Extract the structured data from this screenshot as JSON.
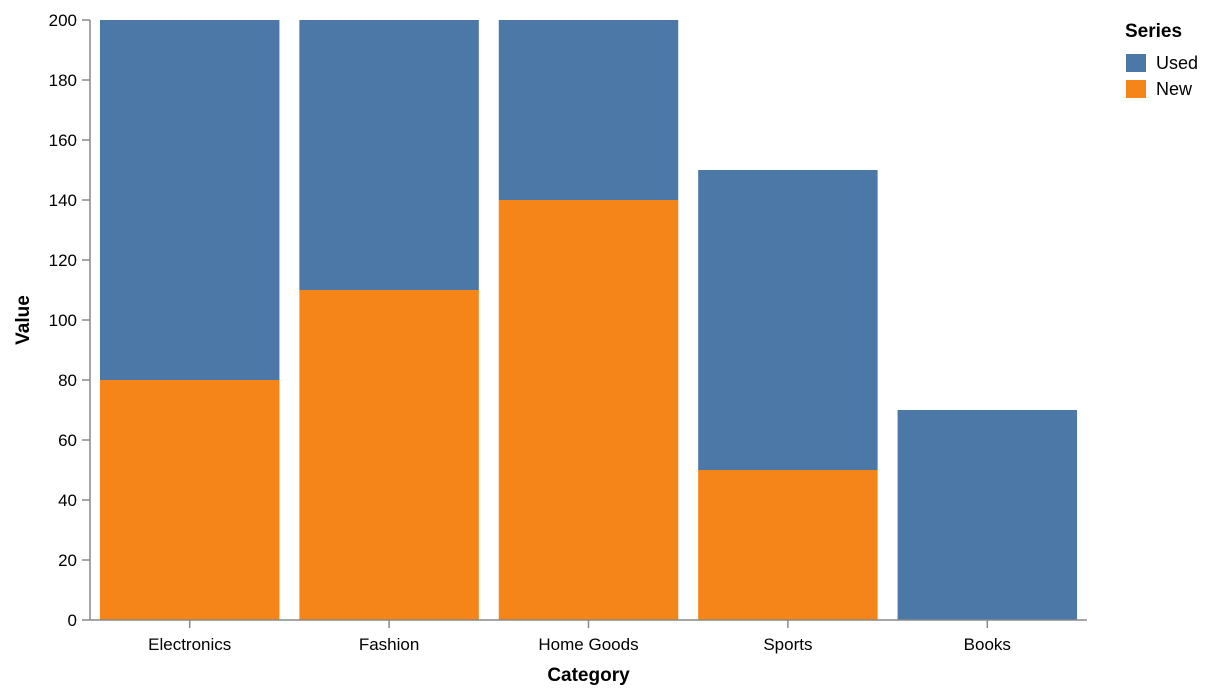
{
  "chart_data": {
    "type": "bar",
    "stacked": true,
    "categories": [
      "Electronics",
      "Fashion",
      "Home Goods",
      "Sports",
      "Books"
    ],
    "series": [
      {
        "name": "New",
        "color": "#f58518",
        "values": [
          80,
          110,
          140,
          50,
          0
        ]
      },
      {
        "name": "Used",
        "color": "#4c78a8",
        "values": [
          120,
          90,
          60,
          100,
          70
        ]
      }
    ],
    "xlabel": "Category",
    "ylabel": "Value",
    "ylim": [
      0,
      200
    ],
    "yticks": [
      0,
      20,
      40,
      60,
      80,
      100,
      120,
      140,
      160,
      180,
      200
    ],
    "grid": false,
    "legend": {
      "title": "Series",
      "position": "top-right",
      "entries": [
        {
          "label": "Used",
          "color": "#4c78a8"
        },
        {
          "label": "New",
          "color": "#f58518"
        }
      ]
    }
  }
}
